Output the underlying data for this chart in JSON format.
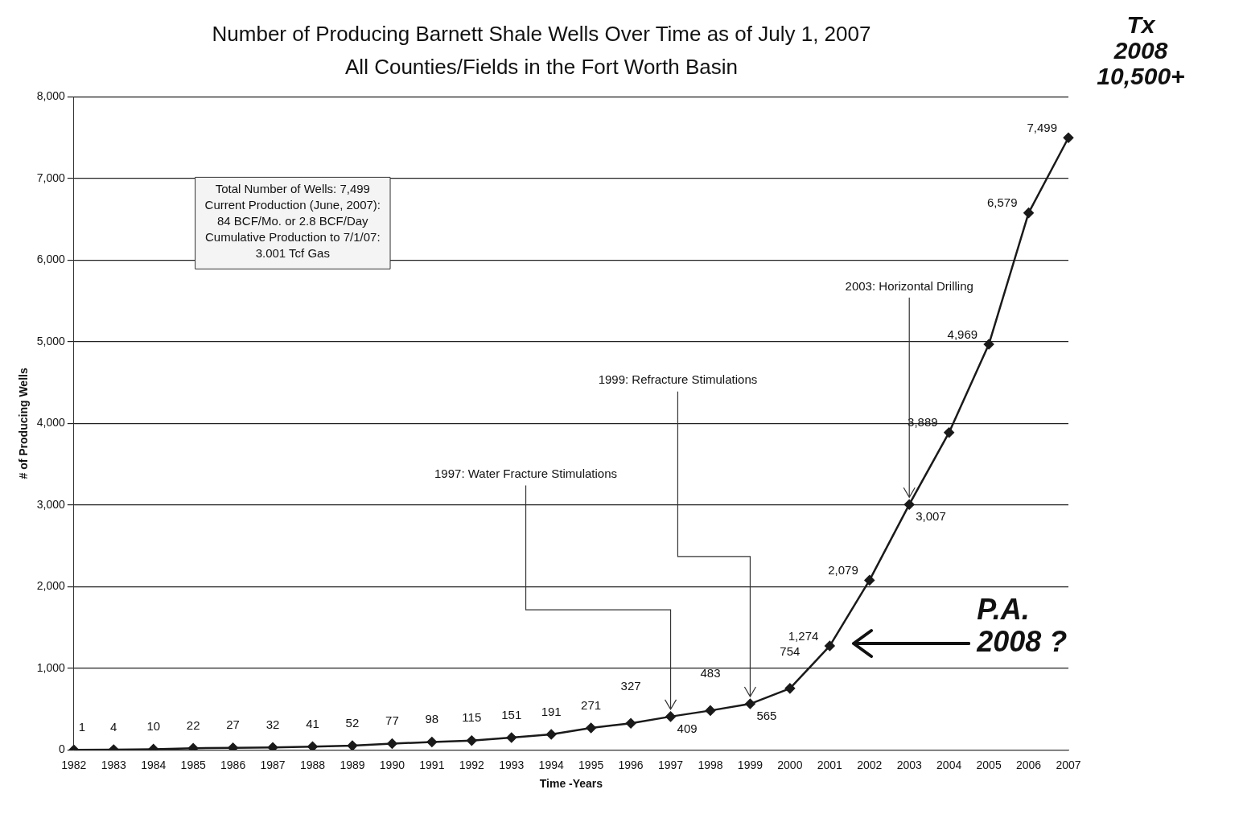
{
  "chart_data": {
    "type": "line",
    "title": "Number of Producing Barnett Shale Wells Over Time as of July 1, 2007",
    "subtitle": "All Counties/Fields in the Fort Worth Basin",
    "xlabel": "Time -Years",
    "ylabel": "# of Producing Wells",
    "categories": [
      "1982",
      "1983",
      "1984",
      "1985",
      "1986",
      "1987",
      "1988",
      "1989",
      "1990",
      "1991",
      "1992",
      "1993",
      "1994",
      "1995",
      "1996",
      "1997",
      "1998",
      "1999",
      "2000",
      "2001",
      "2002",
      "2003",
      "2004",
      "2005",
      "2006",
      "2007"
    ],
    "series": [
      {
        "color": "#1a1a1a",
        "values": [
          1,
          4,
          10,
          22,
          27,
          32,
          41,
          52,
          77,
          98,
          115,
          151,
          191,
          271,
          327,
          409,
          483,
          565,
          754,
          1274,
          2079,
          3007,
          3889,
          4969,
          6579,
          7499
        ],
        "value_labels": [
          "1",
          "4",
          "10",
          "22",
          "27",
          "32",
          "41",
          "52",
          "77",
          "98",
          "115",
          "151",
          "191",
          "271",
          "327",
          "409",
          "483",
          "565",
          "754",
          "1,274",
          "2,079",
          "3,007",
          "3,889",
          "4,969",
          "6,579",
          "7,499"
        ]
      }
    ],
    "ylim": [
      0,
      8000
    ],
    "yticks": [
      0,
      {
        "value": 1000,
        "label": "1,000"
      },
      {
        "value": 2000,
        "label": "2,000"
      },
      {
        "value": 3000,
        "label": "3,000"
      },
      {
        "value": 4000,
        "label": "4,000"
      },
      {
        "value": 5000,
        "label": "5,000"
      },
      {
        "value": 6000,
        "label": "6,000"
      },
      {
        "value": 7000,
        "label": "7,000"
      },
      {
        "value": 8000,
        "label": "8,000"
      }
    ],
    "grid": "y",
    "legend": false,
    "marker": "diamond",
    "line_style": "solid",
    "annotations": [
      "Total Number of Wells: 7,499\nCurrent Production (June, 2007):\n84 BCF/Mo. or 2.8 BCF/Day\nCumulative Production to 7/1/07:\n3.001 Tcf Gas",
      "Tx\n2008\n10,500+",
      "P.A.\n2008 ?",
      {
        "text": "1997: Water Fracture Stimulations",
        "x": "1997",
        "y": 409
      },
      {
        "text": "1999: Refracture Stimulations",
        "x": "1999",
        "y": 565
      },
      {
        "text": "2003: Horizontal Drilling",
        "x": "2003",
        "y": 3007
      }
    ]
  }
}
